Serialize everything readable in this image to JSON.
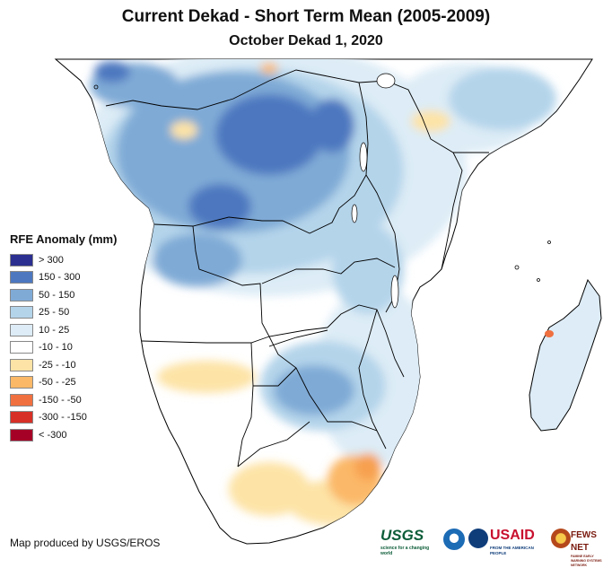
{
  "header": {
    "title": "Current Dekad - Short Term Mean (2005-2009)",
    "subtitle": "October Dekad 1, 2020"
  },
  "legend": {
    "title": "RFE Anomaly (mm)",
    "items": [
      {
        "label": "> 300",
        "color": "#2b2f8f"
      },
      {
        "label": "150 - 300",
        "color": "#4d78c0"
      },
      {
        "label": "50 - 150",
        "color": "#7faad6"
      },
      {
        "label": "25 - 50",
        "color": "#b4d4ea"
      },
      {
        "label": "10 - 25",
        "color": "#ddecf6"
      },
      {
        "label": "-10 - 10",
        "color": "#ffffff"
      },
      {
        "label": "-25 - -10",
        "color": "#fde3a6"
      },
      {
        "label": "-50 - -25",
        "color": "#fbb867"
      },
      {
        "label": "-150 - -50",
        "color": "#f07040"
      },
      {
        "label": "-300 - -150",
        "color": "#d73027"
      },
      {
        "label": "< -300",
        "color": "#a50026"
      }
    ]
  },
  "footer": {
    "credit": "Map produced by USGS/EROS",
    "logos": {
      "usgs": "USGS",
      "usgs_tagline": "science for a changing world",
      "usaid": "USAID",
      "usaid_tagline": "FROM THE AMERICAN PEOPLE",
      "fews": "FEWS NET",
      "fews_tagline": "FAMINE EARLY WARNING SYSTEMS NETWORK"
    }
  },
  "map": {
    "region": "Central and Southern Africa",
    "colors": {
      "outline": "#000000",
      "background": "#ffffff"
    }
  }
}
